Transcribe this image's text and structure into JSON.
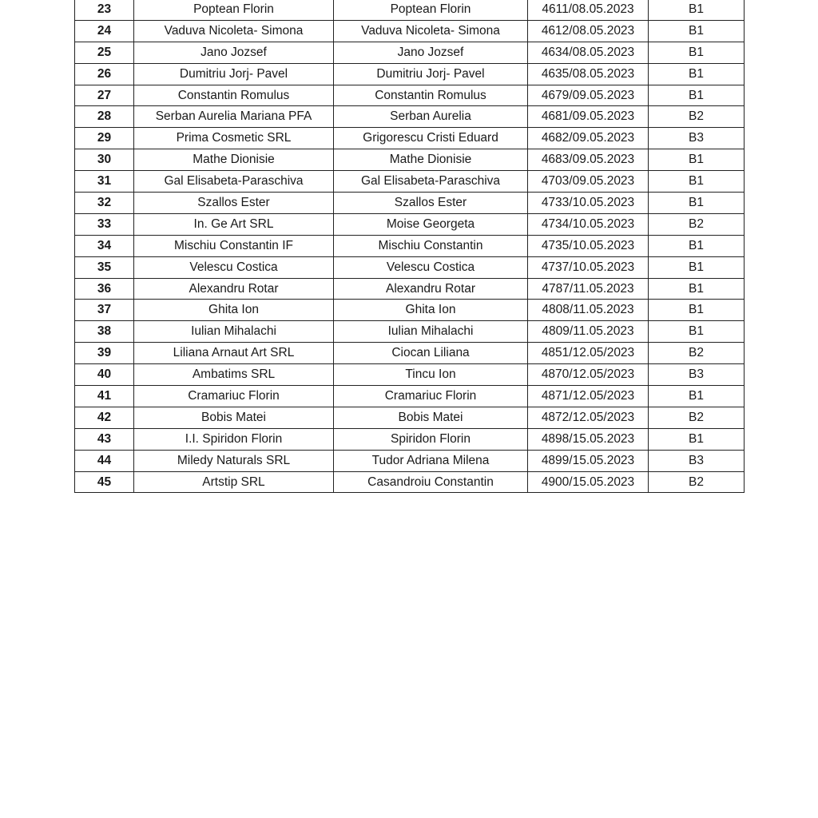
{
  "table": {
    "rows": [
      {
        "nr": "23",
        "company": "Poptean Florin",
        "person": "Poptean Florin",
        "registration": "4611/08.05.2023",
        "category": "B1"
      },
      {
        "nr": "24",
        "company": "Vaduva Nicoleta- Simona",
        "person": "Vaduva Nicoleta- Simona",
        "registration": "4612/08.05.2023",
        "category": "B1"
      },
      {
        "nr": "25",
        "company": "Jano Jozsef",
        "person": "Jano Jozsef",
        "registration": "4634/08.05.2023",
        "category": "B1"
      },
      {
        "nr": "26",
        "company": "Dumitriu Jorj- Pavel",
        "person": "Dumitriu Jorj- Pavel",
        "registration": "4635/08.05.2023",
        "category": "B1"
      },
      {
        "nr": "27",
        "company": "Constantin Romulus",
        "person": "Constantin Romulus",
        "registration": "4679/09.05.2023",
        "category": "B1"
      },
      {
        "nr": "28",
        "company": "Serban Aurelia Mariana PFA",
        "person": "Serban Aurelia",
        "registration": "4681/09.05.2023",
        "category": "B2"
      },
      {
        "nr": "29",
        "company": "Prima Cosmetic SRL",
        "person": "Grigorescu Cristi Eduard",
        "registration": "4682/09.05.2023",
        "category": "B3"
      },
      {
        "nr": "30",
        "company": "Mathe Dionisie",
        "person": "Mathe Dionisie",
        "registration": "4683/09.05.2023",
        "category": "B1"
      },
      {
        "nr": "31",
        "company": "Gal Elisabeta-Paraschiva",
        "person": "Gal Elisabeta-Paraschiva",
        "registration": "4703/09.05.2023",
        "category": "B1"
      },
      {
        "nr": "32",
        "company": "Szallos Ester",
        "person": "Szallos Ester",
        "registration": "4733/10.05.2023",
        "category": "B1"
      },
      {
        "nr": "33",
        "company": "In. Ge Art SRL",
        "person": "Moise Georgeta",
        "registration": "4734/10.05.2023",
        "category": "B2"
      },
      {
        "nr": "34",
        "company": "Mischiu Constantin IF",
        "person": "Mischiu Constantin",
        "registration": "4735/10.05.2023",
        "category": "B1"
      },
      {
        "nr": "35",
        "company": "Velescu Costica",
        "person": "Velescu Costica",
        "registration": "4737/10.05.2023",
        "category": "B1"
      },
      {
        "nr": "36",
        "company": "Alexandru Rotar",
        "person": "Alexandru Rotar",
        "registration": "4787/11.05.2023",
        "category": "B1"
      },
      {
        "nr": "37",
        "company": "Ghita Ion",
        "person": "Ghita Ion",
        "registration": "4808/11.05.2023",
        "category": "B1"
      },
      {
        "nr": "38",
        "company": "Iulian Mihalachi",
        "person": "Iulian Mihalachi",
        "registration": "4809/11.05.2023",
        "category": "B1"
      },
      {
        "nr": "39",
        "company": "Liliana Arnaut Art SRL",
        "person": "Ciocan Liliana",
        "registration": "4851/12.05/2023",
        "category": "B2"
      },
      {
        "nr": "40",
        "company": "Ambatims SRL",
        "person": "Tincu Ion",
        "registration": "4870/12.05/2023",
        "category": "B3"
      },
      {
        "nr": "41",
        "company": "Cramariuc Florin",
        "person": "Cramariuc Florin",
        "registration": "4871/12.05/2023",
        "category": "B1"
      },
      {
        "nr": "42",
        "company": "Bobis Matei",
        "person": "Bobis Matei",
        "registration": "4872/12.05/2023",
        "category": "B2"
      },
      {
        "nr": "43",
        "company": "I.I. Spiridon Florin",
        "person": "Spiridon Florin",
        "registration": "4898/15.05.2023",
        "category": "B1"
      },
      {
        "nr": "44",
        "company": "Miledy Naturals SRL",
        "person": "Tudor Adriana Milena",
        "registration": "4899/15.05.2023",
        "category": "B3"
      },
      {
        "nr": "45",
        "company": "Artstip SRL",
        "person": "Casandroiu Constantin",
        "registration": "4900/15.05.2023",
        "category": "B2"
      }
    ]
  }
}
